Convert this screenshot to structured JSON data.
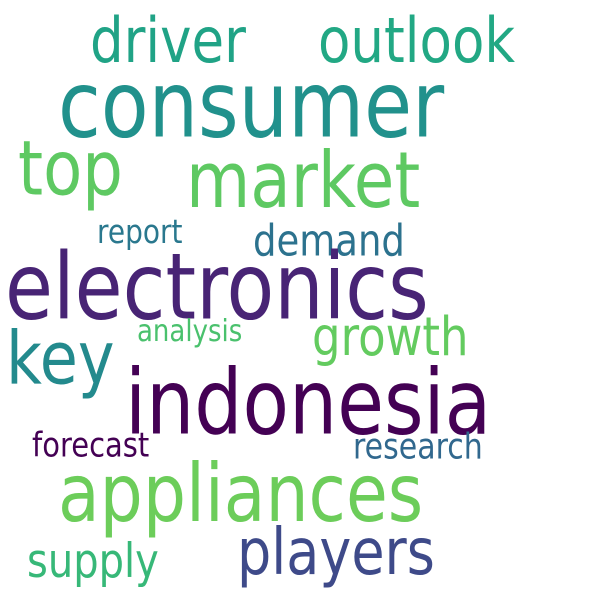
{
  "words": {
    "consumer": {
      "text": "consumer",
      "color": "#21918c"
    },
    "driver": {
      "text": "driver",
      "color": "#20a386"
    },
    "outlook": {
      "text": "outlook",
      "color": "#22a884"
    },
    "top": {
      "text": "top",
      "color": "#5ec962"
    },
    "market": {
      "text": "market",
      "color": "#5ec962"
    },
    "report": {
      "text": "report",
      "color": "#2a788e"
    },
    "demand": {
      "text": "demand",
      "color": "#2c728e"
    },
    "electronics": {
      "text": "electronics",
      "color": "#482475"
    },
    "key": {
      "text": "key",
      "color": "#238a8d"
    },
    "analysis": {
      "text": "analysis",
      "color": "#4ac16d"
    },
    "growth": {
      "text": "growth",
      "color": "#63cb5f"
    },
    "indonesia": {
      "text": "indonesia",
      "color": "#440154"
    },
    "forecast": {
      "text": "forecast",
      "color": "#440154"
    },
    "research": {
      "text": "research",
      "color": "#31688e"
    },
    "appliances": {
      "text": "appliances",
      "color": "#6ccd5a"
    },
    "players": {
      "text": "players",
      "color": "#3e4a89"
    },
    "supply": {
      "text": "supply",
      "color": "#37b878"
    }
  }
}
